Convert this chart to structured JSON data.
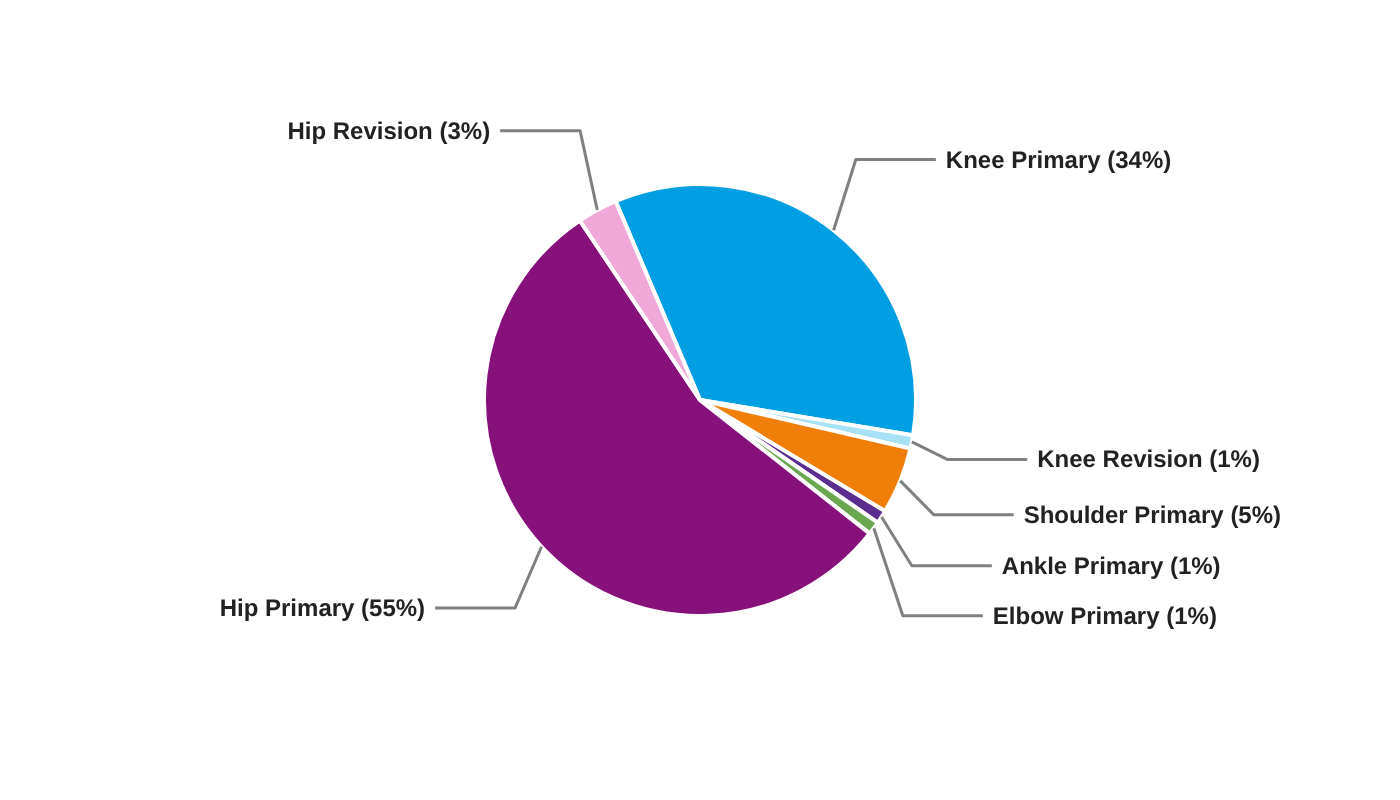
{
  "chart_data": {
    "type": "pie",
    "categories": [
      "Knee Primary (34%)",
      "Knee Revision (1%)",
      "Shoulder Primary (5%)",
      "Ankle Primary (1%)",
      "Elbow Primary (1%)",
      "Hip Primary (55%)",
      "Hip Revision (3%)"
    ],
    "values": [
      34,
      1,
      5,
      1,
      1,
      55,
      3
    ],
    "colors": [
      "#009fe3",
      "#a6e1f5",
      "#f07f09",
      "#5b2d8e",
      "#6aa84f",
      "#86117a",
      "#f0a8d8"
    ]
  }
}
